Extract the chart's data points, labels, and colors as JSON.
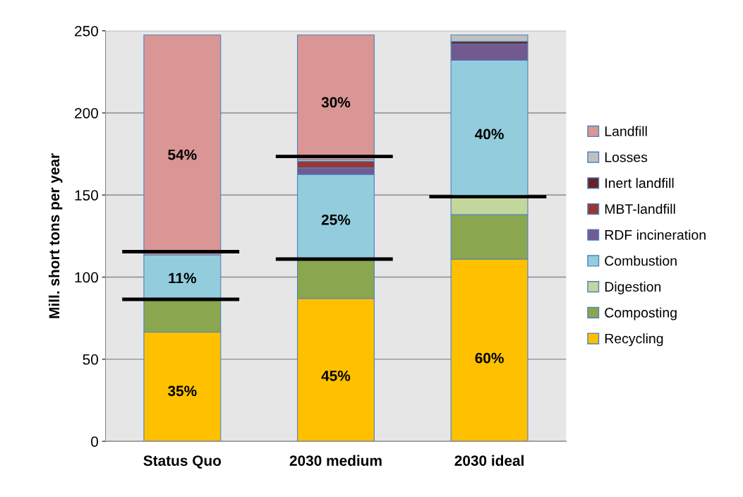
{
  "chart_data": {
    "type": "bar",
    "stacked": true,
    "ylabel": "Mill. short tons per year",
    "categories": [
      "Status Quo",
      "2030 medium",
      "2030 ideal"
    ],
    "ylim": [
      0,
      250
    ],
    "yticks": [
      0,
      50,
      100,
      150,
      200,
      250
    ],
    "grid": "y",
    "legend": "right",
    "series": [
      {
        "name": "Recycling",
        "color": "#ffc000",
        "values": [
          66.5,
          87,
          111
        ]
      },
      {
        "name": "Composting",
        "color": "#8aa64f",
        "values": [
          20,
          24,
          27
        ]
      },
      {
        "name": "Digestion",
        "color": "#c3d69b",
        "values": [
          0,
          0,
          11
        ]
      },
      {
        "name": "Combustion",
        "color": "#93cddd",
        "values": [
          27,
          51.5,
          83
        ]
      },
      {
        "name": "RDF incineration",
        "color": "#72598f",
        "values": [
          0,
          4,
          10
        ]
      },
      {
        "name": "MBT-landfill",
        "color": "#953735",
        "values": [
          0,
          4,
          0
        ]
      },
      {
        "name": "Inert landfill",
        "color": "#632523",
        "values": [
          0,
          0,
          1.5
        ]
      },
      {
        "name": "Losses",
        "color": "#c0c0c0",
        "values": [
          0,
          1,
          4
        ]
      },
      {
        "name": "Landfill",
        "color": "#d99694",
        "values": [
          134,
          76,
          0
        ]
      }
    ],
    "annotations": [
      "35%",
      "11%",
      "54%",
      "45%",
      "25%",
      "30%",
      "60%",
      "40%"
    ]
  }
}
